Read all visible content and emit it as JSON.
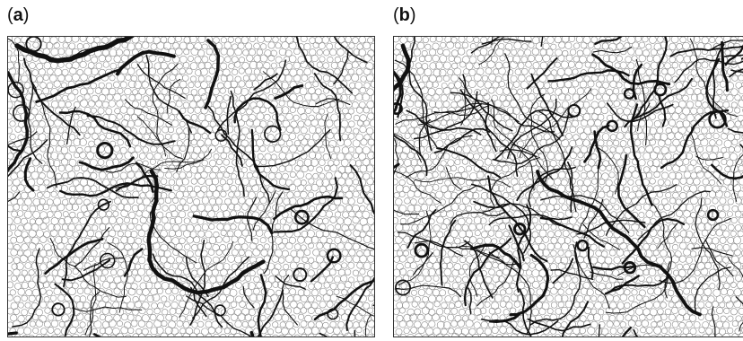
{
  "figure": {
    "panels": [
      {
        "id": "a",
        "label_open": "(",
        "label_letter": "a",
        "label_close": ")"
      },
      {
        "id": "b",
        "label_open": "(",
        "label_letter": "b",
        "label_close": ")"
      }
    ]
  }
}
